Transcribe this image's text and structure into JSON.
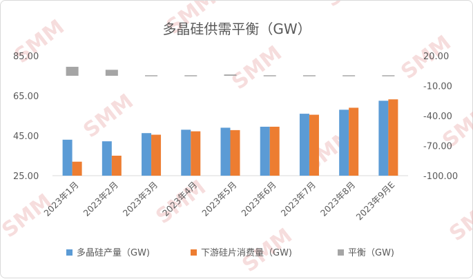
{
  "watermark": {
    "text": "SMM",
    "color": "#e8a0a0"
  },
  "chart_data": {
    "type": "bar",
    "title": "多晶硅供需平衡（GW）",
    "categories": [
      "2023年1月",
      "2023年2月",
      "2023年3月",
      "2023年4月",
      "2023年5月",
      "2023年6月",
      "2023年7月",
      "2023年8月",
      "2023年9月E"
    ],
    "series": [
      {
        "name": "多晶硅产量（GW)",
        "axis": "left",
        "color": "#5b9bd5",
        "values": [
          43.0,
          42.2,
          46.3,
          48.0,
          49.0,
          49.5,
          56.0,
          58.0,
          62.5
        ]
      },
      {
        "name": "下游硅片消费量（GW)",
        "axis": "left",
        "color": "#ed7d31",
        "values": [
          32.0,
          35.0,
          45.5,
          47.2,
          47.8,
          49.5,
          55.5,
          59.0,
          63.2
        ]
      },
      {
        "name": "平衡（GW)",
        "axis": "right",
        "color": "#a5a5a5",
        "values": [
          9.0,
          6.0,
          0.5,
          0.8,
          1.3,
          -0.2,
          0.5,
          -1.0,
          -0.7
        ]
      }
    ],
    "y_left": {
      "ticks": [
        "85.00",
        "65.00",
        "45.00",
        "25.00"
      ],
      "min": 25,
      "max": 85
    },
    "y_right": {
      "ticks": [
        "20.00",
        "-10.00",
        "-40.00",
        "-70.00",
        "-100.00"
      ],
      "min": -100,
      "max": 20
    },
    "legend_position": "bottom",
    "grid": false
  }
}
